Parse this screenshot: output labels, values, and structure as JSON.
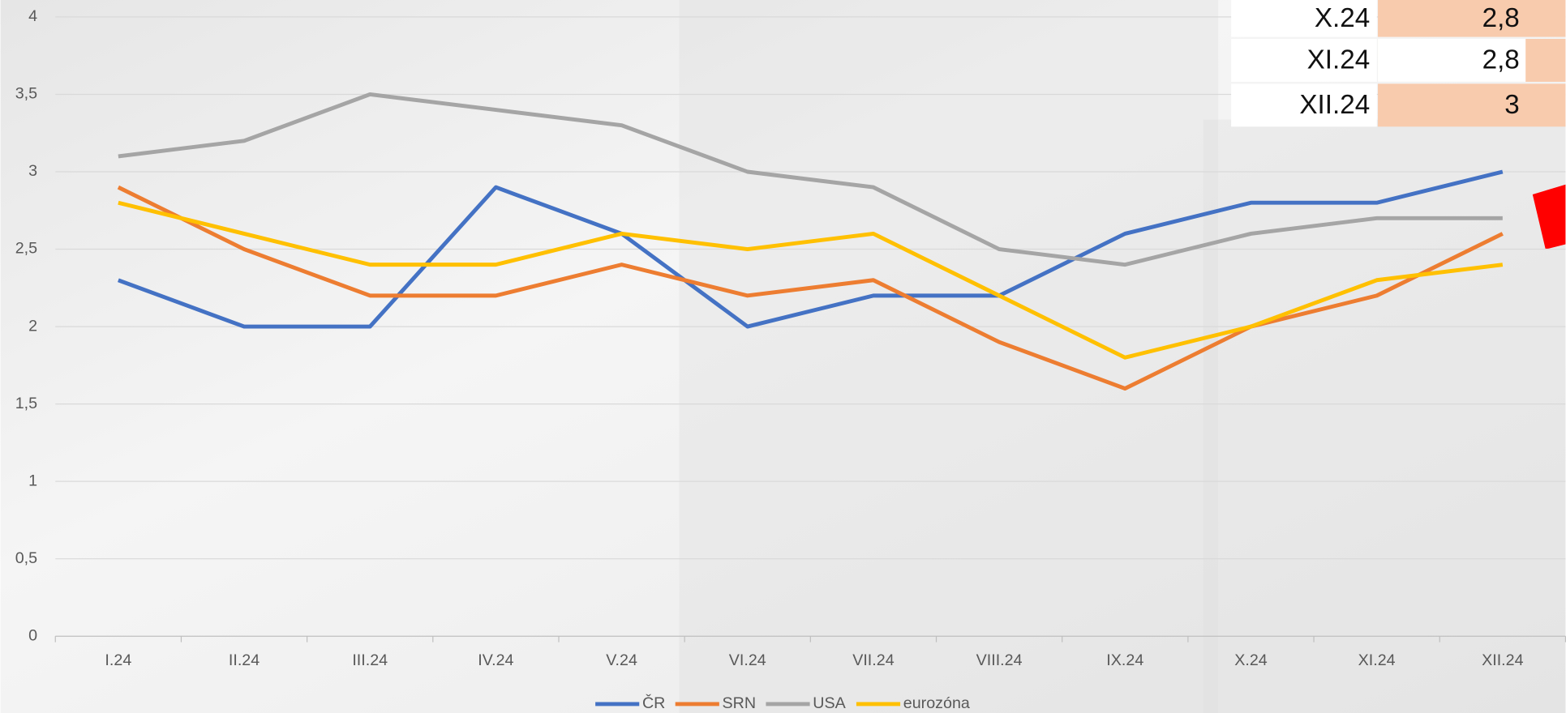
{
  "chart_data": {
    "type": "line",
    "categories": [
      "I.24",
      "II.24",
      "III.24",
      "IV.24",
      "V.24",
      "VI.24",
      "VII.24",
      "VIII.24",
      "IX.24",
      "X.24",
      "XI.24",
      "XII.24"
    ],
    "series": [
      {
        "name": "ČR",
        "color": "#4472c4",
        "values": [
          2.3,
          2.0,
          2.0,
          2.9,
          2.6,
          2.0,
          2.2,
          2.2,
          2.6,
          2.8,
          2.8,
          3.0
        ]
      },
      {
        "name": "SRN",
        "color": "#ed7d31",
        "values": [
          2.9,
          2.5,
          2.2,
          2.2,
          2.4,
          2.2,
          2.3,
          1.9,
          1.6,
          2.0,
          2.2,
          2.6
        ]
      },
      {
        "name": "USA",
        "color": "#a5a5a5",
        "values": [
          3.1,
          3.2,
          3.5,
          3.4,
          3.3,
          3.0,
          2.9,
          2.5,
          2.4,
          2.6,
          2.7,
          2.7
        ]
      },
      {
        "name": "eurozóna",
        "color": "#ffc000",
        "values": [
          2.8,
          2.6,
          2.4,
          2.4,
          2.6,
          2.5,
          2.6,
          2.2,
          1.8,
          2.0,
          2.3,
          2.4
        ]
      }
    ],
    "ylim": [
      0,
      4
    ],
    "yticks": [
      0,
      {
        "value": 0.5,
        "label": "0,5"
      },
      1,
      {
        "value": 1.5,
        "label": "1,5"
      },
      2,
      {
        "value": 2.5,
        "label": "2,5"
      },
      3,
      {
        "value": 3.5,
        "label": "3,5"
      },
      4
    ],
    "grid": true,
    "legend": "bottom"
  },
  "table": {
    "rows": [
      [
        "X.24",
        "2,8"
      ],
      [
        "XI.24",
        "2,8"
      ],
      [
        "XII.24",
        "3"
      ]
    ]
  }
}
